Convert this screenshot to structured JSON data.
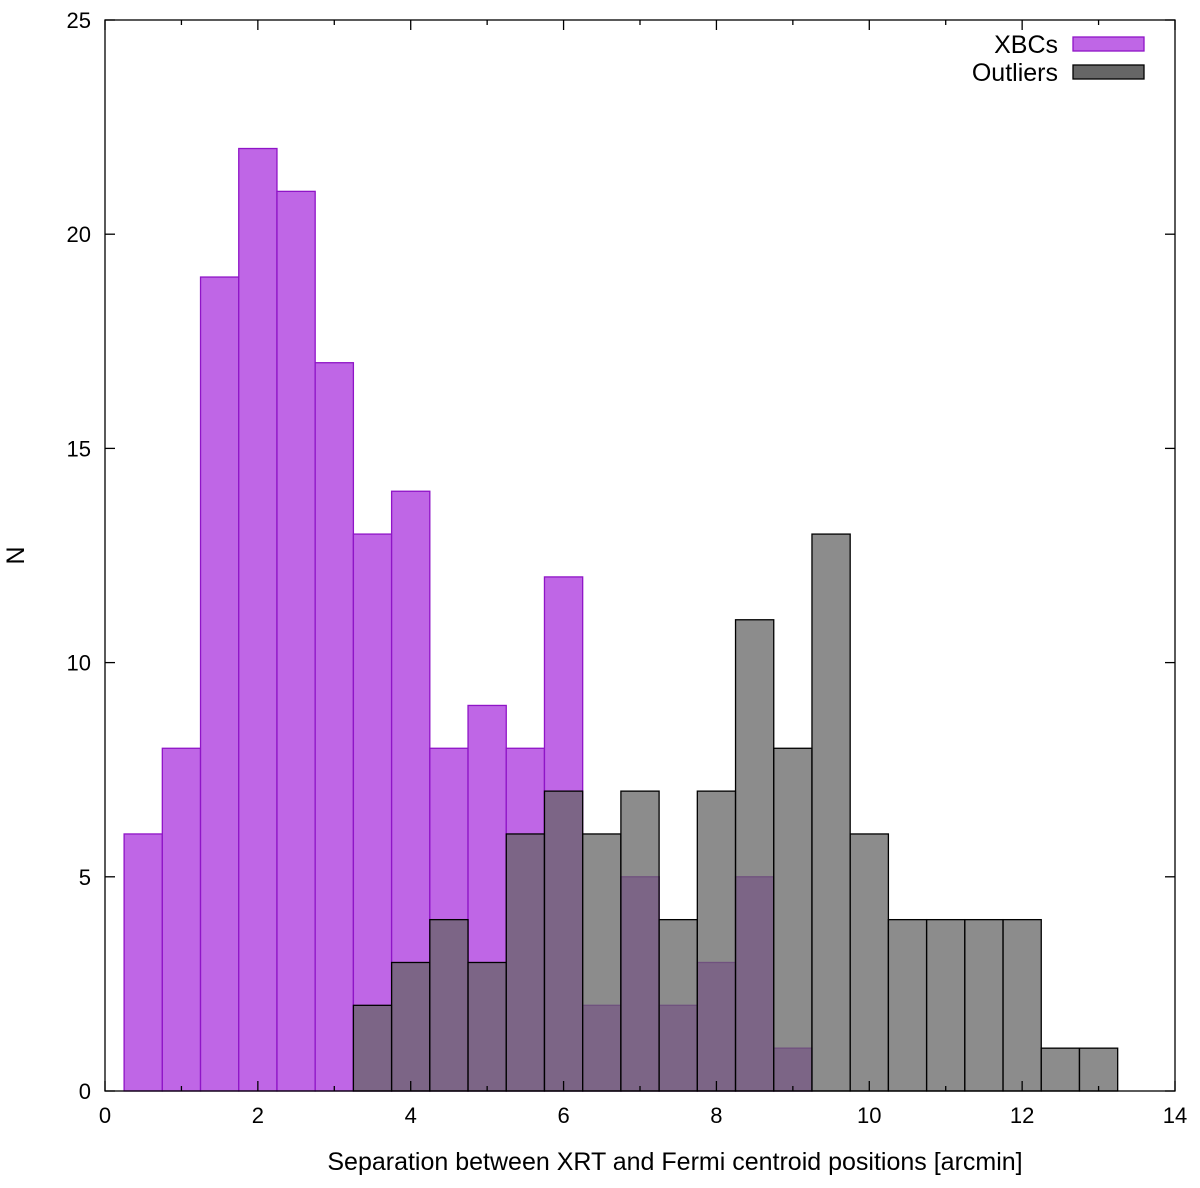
{
  "chart_data": {
    "type": "bar",
    "title": "",
    "xlabel": "Separation between XRT and Fermi centroid positions [arcmin]",
    "ylabel": "N",
    "xlim": [
      0,
      14
    ],
    "ylim": [
      0,
      25
    ],
    "xticks": [
      0,
      2,
      4,
      6,
      8,
      10,
      12,
      14
    ],
    "xtick_labels": [
      "0",
      "2",
      "4",
      "6",
      "8",
      "10",
      "12",
      "14"
    ],
    "yticks": [
      0,
      5,
      10,
      15,
      20,
      25
    ],
    "ytick_labels": [
      "0",
      "5",
      "10",
      "15",
      "20",
      "25"
    ],
    "bin_width": 0.5,
    "legend_position": "top-right",
    "series": [
      {
        "name": "XBCs",
        "fill": "#bf66e6",
        "stroke": "#8f14c7",
        "bin_centers": [
          0.5,
          1.0,
          1.5,
          2.0,
          2.5,
          3.0,
          3.5,
          4.0,
          4.5,
          5.0,
          5.5,
          6.0,
          6.5,
          7.0,
          7.5,
          8.0,
          8.5,
          9.0
        ],
        "values": [
          6,
          8,
          19,
          22,
          21,
          17,
          13,
          14,
          8,
          9,
          8,
          12,
          2,
          5,
          2,
          3,
          5,
          1
        ]
      },
      {
        "name": "Outliers",
        "fill": "#666666",
        "stroke": "#000000",
        "opacity": 0.75,
        "bin_centers": [
          3.5,
          4.0,
          4.5,
          5.0,
          5.5,
          6.0,
          6.5,
          7.0,
          7.5,
          8.0,
          8.5,
          9.0,
          9.5,
          10.0,
          10.5,
          11.0,
          11.5,
          12.0,
          12.5,
          13.0
        ],
        "values": [
          2,
          3,
          4,
          3,
          6,
          7,
          6,
          7,
          4,
          7,
          11,
          8,
          13,
          6,
          4,
          4,
          4,
          4,
          1,
          1
        ]
      }
    ]
  }
}
